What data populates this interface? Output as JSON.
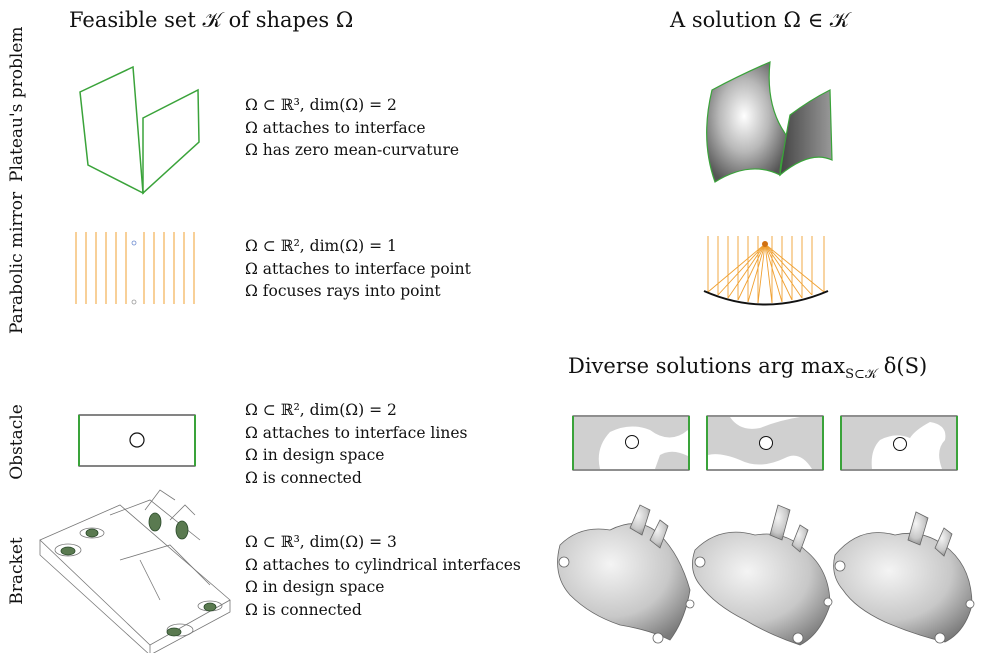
{
  "headers": {
    "feasible": "Feasible set 𝒦 of shapes Ω",
    "solution": "A solution Ω ∈ 𝒦",
    "diverse": "Diverse solutions arg max",
    "diverse_sub": "S⊂𝒦",
    "diverse_tail": "δ(S)"
  },
  "rows": [
    {
      "label": "Plateau's problem",
      "lines": [
        "Ω ⊂ ℝ³, dim(Ω) = 2",
        "Ω attaches to interface",
        "Ω has zero mean-curvature"
      ]
    },
    {
      "label": "Parabolic mirror",
      "lines": [
        "Ω ⊂ ℝ², dim(Ω) = 1",
        "Ω attaches to interface point",
        "Ω focuses rays into point"
      ]
    },
    {
      "label": "Obstacle",
      "lines": [
        "Ω ⊂ ℝ², dim(Ω) = 2",
        "Ω attaches to interface lines",
        "Ω in design space",
        "Ω is connected"
      ]
    },
    {
      "label": "Bracket",
      "lines": [
        "Ω ⊂ ℝ³, dim(Ω) = 3",
        "Ω attaches to cylindrical interfaces",
        "Ω in design space",
        "Ω is connected"
      ]
    }
  ],
  "colors": {
    "interface": "#3aa33a",
    "rays": "#f0a030",
    "fill": "#d0d0d0"
  }
}
